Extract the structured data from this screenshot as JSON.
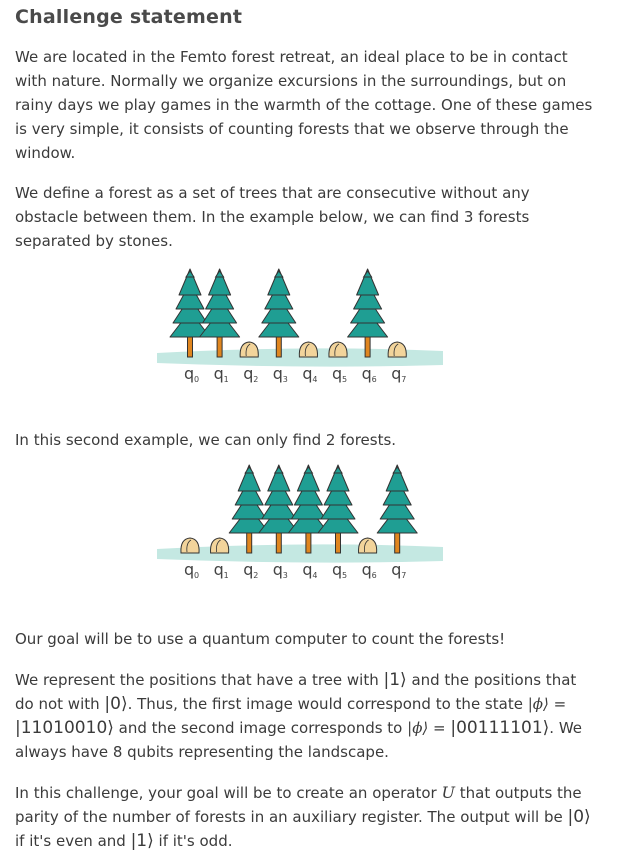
{
  "title": "Challenge statement",
  "para1": "We are located in the Femto forest retreat, an ideal place to be in contact with nature. Normally we organize excursions in the surroundings, but on rainy days we play games in the warmth of the cottage. One of these games is very simple, it consists of counting forests that we observe through the window.",
  "para2": "We define a forest as a set of trees that are consecutive without any obstacle between them. In the example below, we can find 3 forests separated by stones.",
  "para3": "In this second example, we can only find 2 forests.",
  "para4": "Our goal will be to use a quantum computer to count the forests!",
  "para5": {
    "a": "We represent the positions that have a tree with ",
    "ket1": "|1⟩",
    "b": " and the positions that do not with ",
    "ket0": "|0⟩",
    "c": ". Thus, the first image would correspond to the state ",
    "phi1": "|ϕ⟩",
    "eq1": " = ",
    "state1": "|11010010⟩",
    "d": " and the second image corresponds to ",
    "phi2": "|ϕ⟩",
    "eq2": " = ",
    "state2": "|00111101⟩",
    "e": ". We always have 8 qubits representing the landscape."
  },
  "para6": {
    "a": "In this challenge, your goal will be to create an operator ",
    "op": "U",
    "b": " that outputs the parity of the number of forests in an auxiliary register. The output will be ",
    "ket0": "|0⟩",
    "c": " if it's even and ",
    "ket1": "|1⟩",
    "d": " if it's odd."
  },
  "figure1": {
    "cells": [
      "tree",
      "tree",
      "stone",
      "tree",
      "stone",
      "stone",
      "tree",
      "stone"
    ]
  },
  "figure2": {
    "cells": [
      "stone",
      "stone",
      "tree",
      "tree",
      "tree",
      "tree",
      "stone",
      "tree"
    ]
  },
  "qubit_labels": [
    "q",
    "q",
    "q",
    "q",
    "q",
    "q",
    "q",
    "q"
  ],
  "qubit_subs": [
    "0",
    "1",
    "2",
    "3",
    "4",
    "5",
    "6",
    "7"
  ],
  "colors": {
    "tree": "#1f9e93",
    "trunk": "#e0861f",
    "stone": "#f2d49b",
    "ground": "#c4e8e2",
    "outline": "#333333"
  }
}
